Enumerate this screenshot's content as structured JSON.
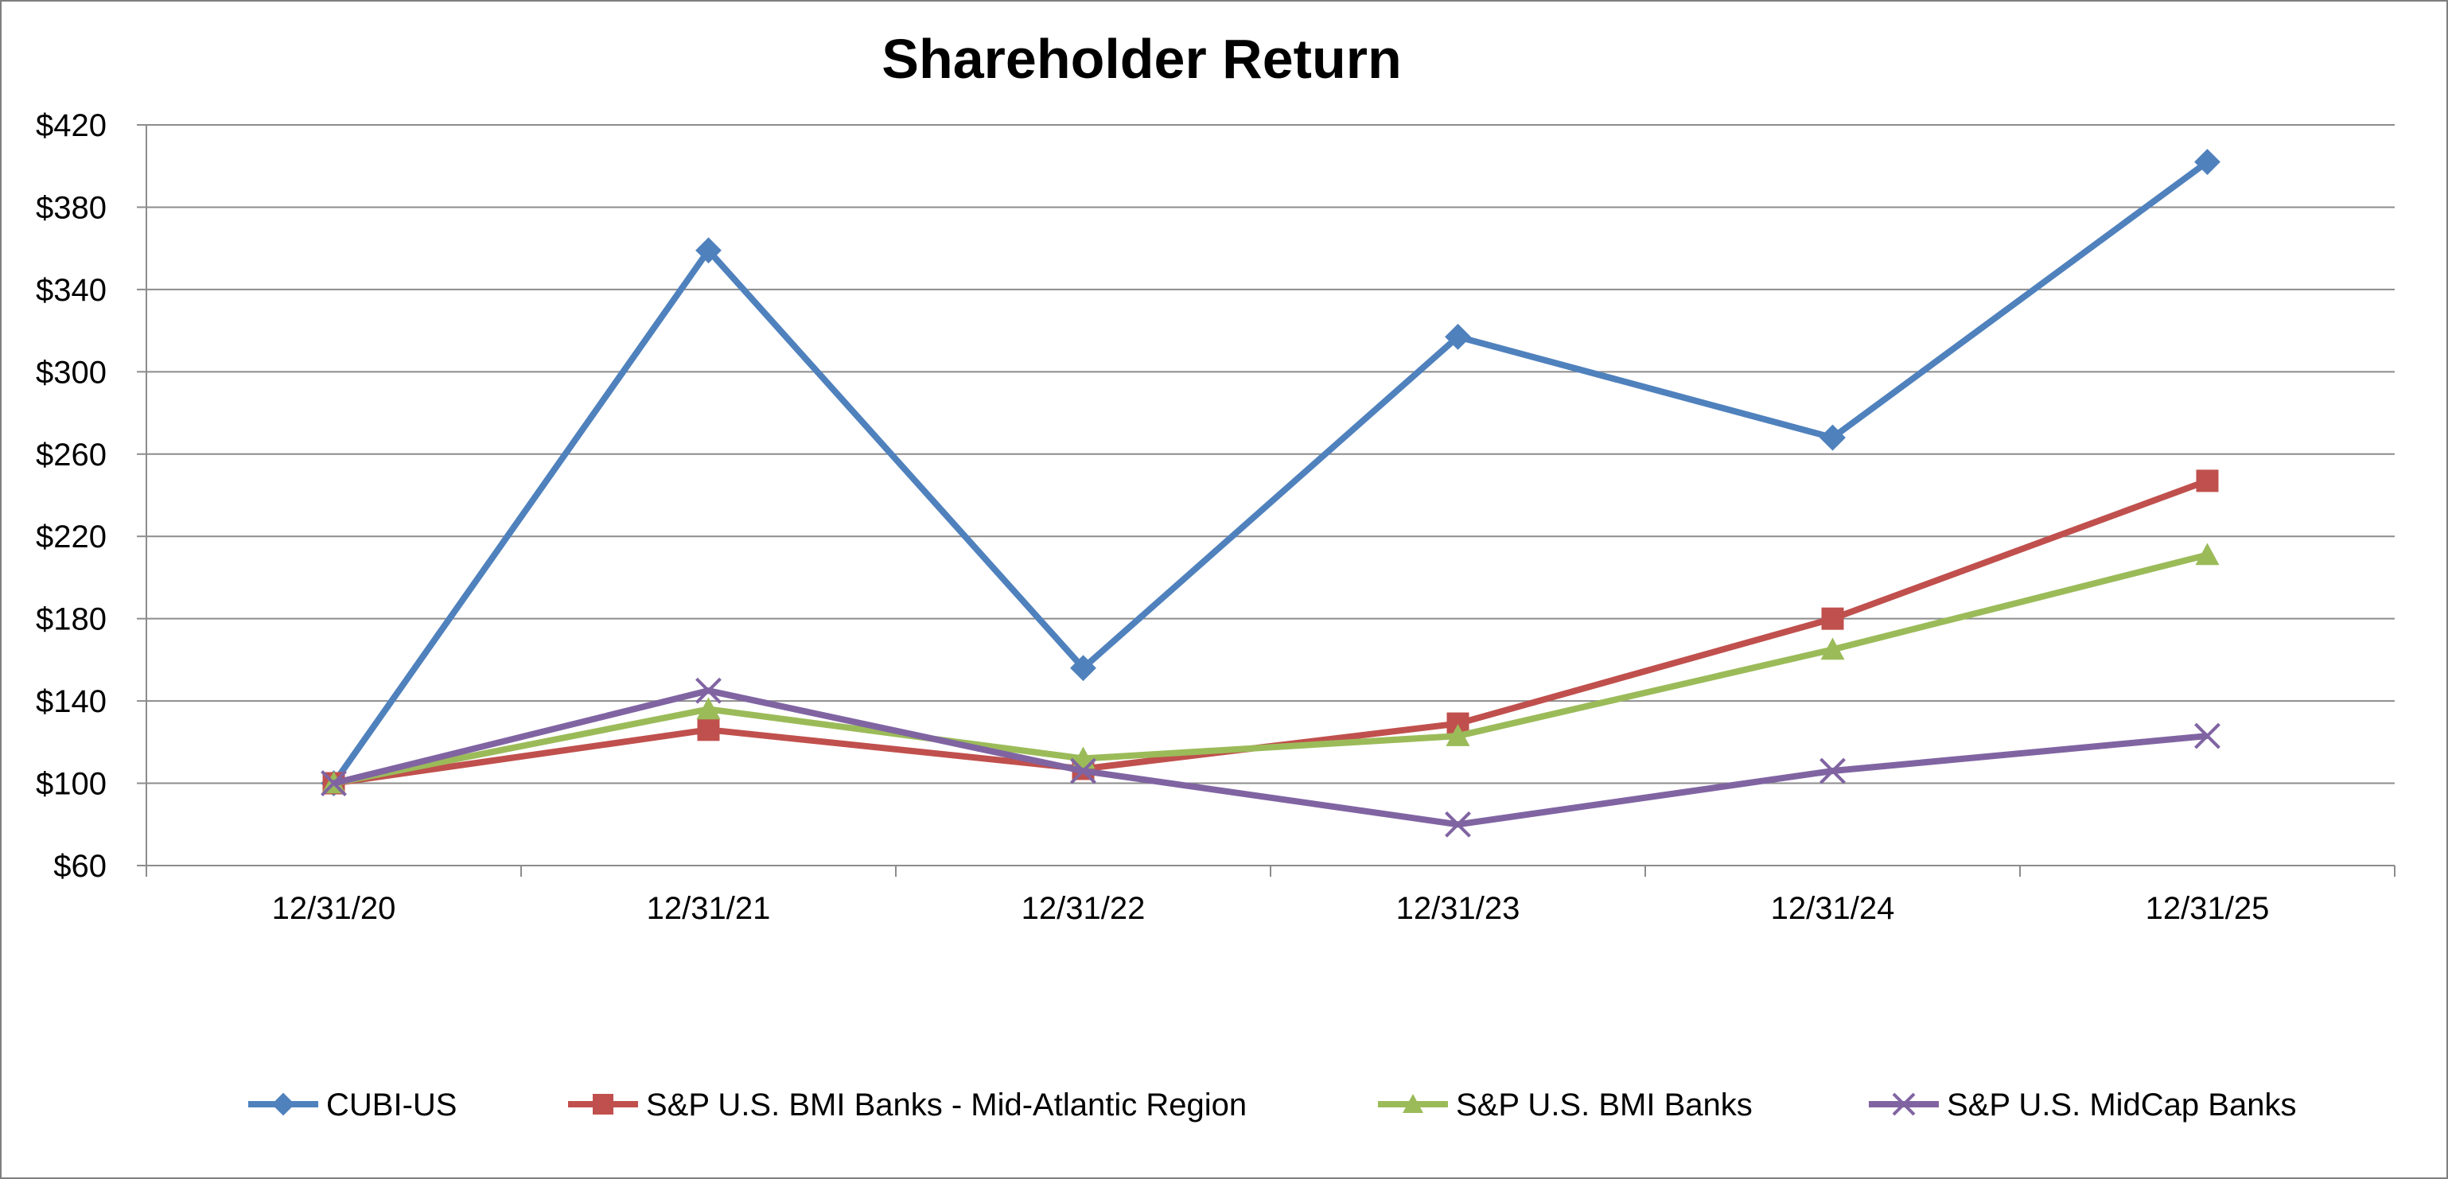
{
  "chart_data": {
    "type": "line",
    "title": "Shareholder Return",
    "xlabel": "",
    "ylabel": "",
    "categories": [
      "12/31/20",
      "12/31/21",
      "12/31/22",
      "12/31/23",
      "12/31/24",
      "12/31/25"
    ],
    "ylim": [
      60,
      420
    ],
    "yticks": [
      60,
      100,
      140,
      180,
      220,
      260,
      300,
      340,
      380,
      420
    ],
    "ytick_labels": [
      "$60",
      "$100",
      "$140",
      "$180",
      "$220",
      "$260",
      "$300",
      "$340",
      "$380",
      "$420"
    ],
    "grid": true,
    "legend_position": "bottom",
    "series": [
      {
        "name": "CUBI-US",
        "color": "#4F81BD",
        "marker": "diamond",
        "values": [
          100,
          359,
          156,
          317,
          268,
          402
        ]
      },
      {
        "name": "S&P U.S. BMI Banks - Mid-Atlantic Region",
        "color": "#C0504D",
        "marker": "square",
        "values": [
          100,
          126,
          107,
          129,
          180,
          247
        ]
      },
      {
        "name": "S&P U.S. BMI Banks",
        "color": "#9BBB59",
        "marker": "triangle",
        "values": [
          100,
          136,
          112,
          123,
          165,
          211
        ]
      },
      {
        "name": "S&P U.S. MidCap Banks",
        "color": "#8064A2",
        "marker": "x",
        "values": [
          100,
          145,
          106,
          80,
          106,
          123
        ]
      }
    ]
  }
}
